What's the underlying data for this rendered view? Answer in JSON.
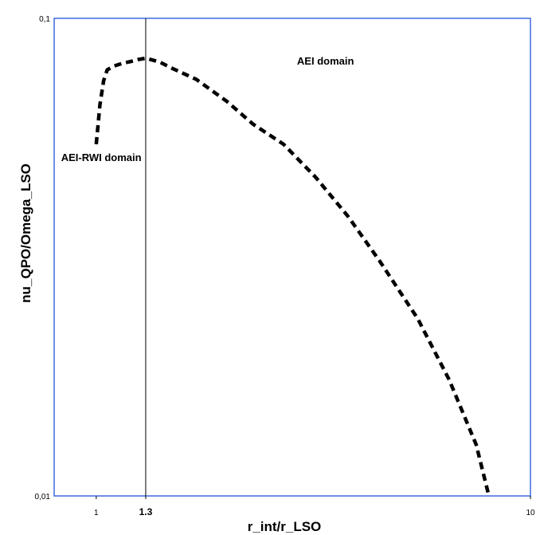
{
  "chart_data": {
    "type": "line",
    "xlabel": "r_int/r_LSO",
    "ylabel": "nu_QPO/Omega_LSO",
    "xscale": "log",
    "yscale": "log",
    "xlim": [
      0.8,
      10
    ],
    "ylim": [
      0.01,
      0.1
    ],
    "x_ticks": [
      {
        "value": 1,
        "label": "1",
        "bold": false
      },
      {
        "value": 1.3,
        "label": "1.3",
        "bold": true
      },
      {
        "value": 10,
        "label": "10",
        "bold": false
      }
    ],
    "y_ticks": [
      {
        "value": 0.1,
        "label": "0,1"
      },
      {
        "value": 0.01,
        "label": "0,01"
      }
    ],
    "vertical_line": {
      "x": 1.3
    },
    "annotations": [
      {
        "text": "AEI domain",
        "x": 2.9,
        "y": 0.08
      },
      {
        "text": "AEI-RWI domain",
        "x": 0.83,
        "y": 0.0503
      }
    ],
    "series": [
      {
        "style": "dashed",
        "color": "#000000",
        "x": [
          1.0,
          1.01,
          1.02,
          1.04,
          1.06,
          1.1,
          1.15,
          1.2,
          1.25,
          1.3,
          1.4,
          1.5,
          1.7,
          2.0,
          2.3,
          2.7,
          3.2,
          3.8,
          4.5,
          5.5,
          6.5,
          7.5,
          8.0
        ],
        "y": [
          0.0545,
          0.06,
          0.066,
          0.074,
          0.078,
          0.0795,
          0.0805,
          0.0812,
          0.082,
          0.0825,
          0.081,
          0.0785,
          0.0745,
          0.067,
          0.06,
          0.0545,
          0.0465,
          0.0385,
          0.031,
          0.0235,
          0.0175,
          0.0128,
          0.0101
        ]
      }
    ],
    "colors": {
      "frame": "#4169E1",
      "line": "#000000",
      "vertical_line": "#000000"
    },
    "grid": false
  }
}
